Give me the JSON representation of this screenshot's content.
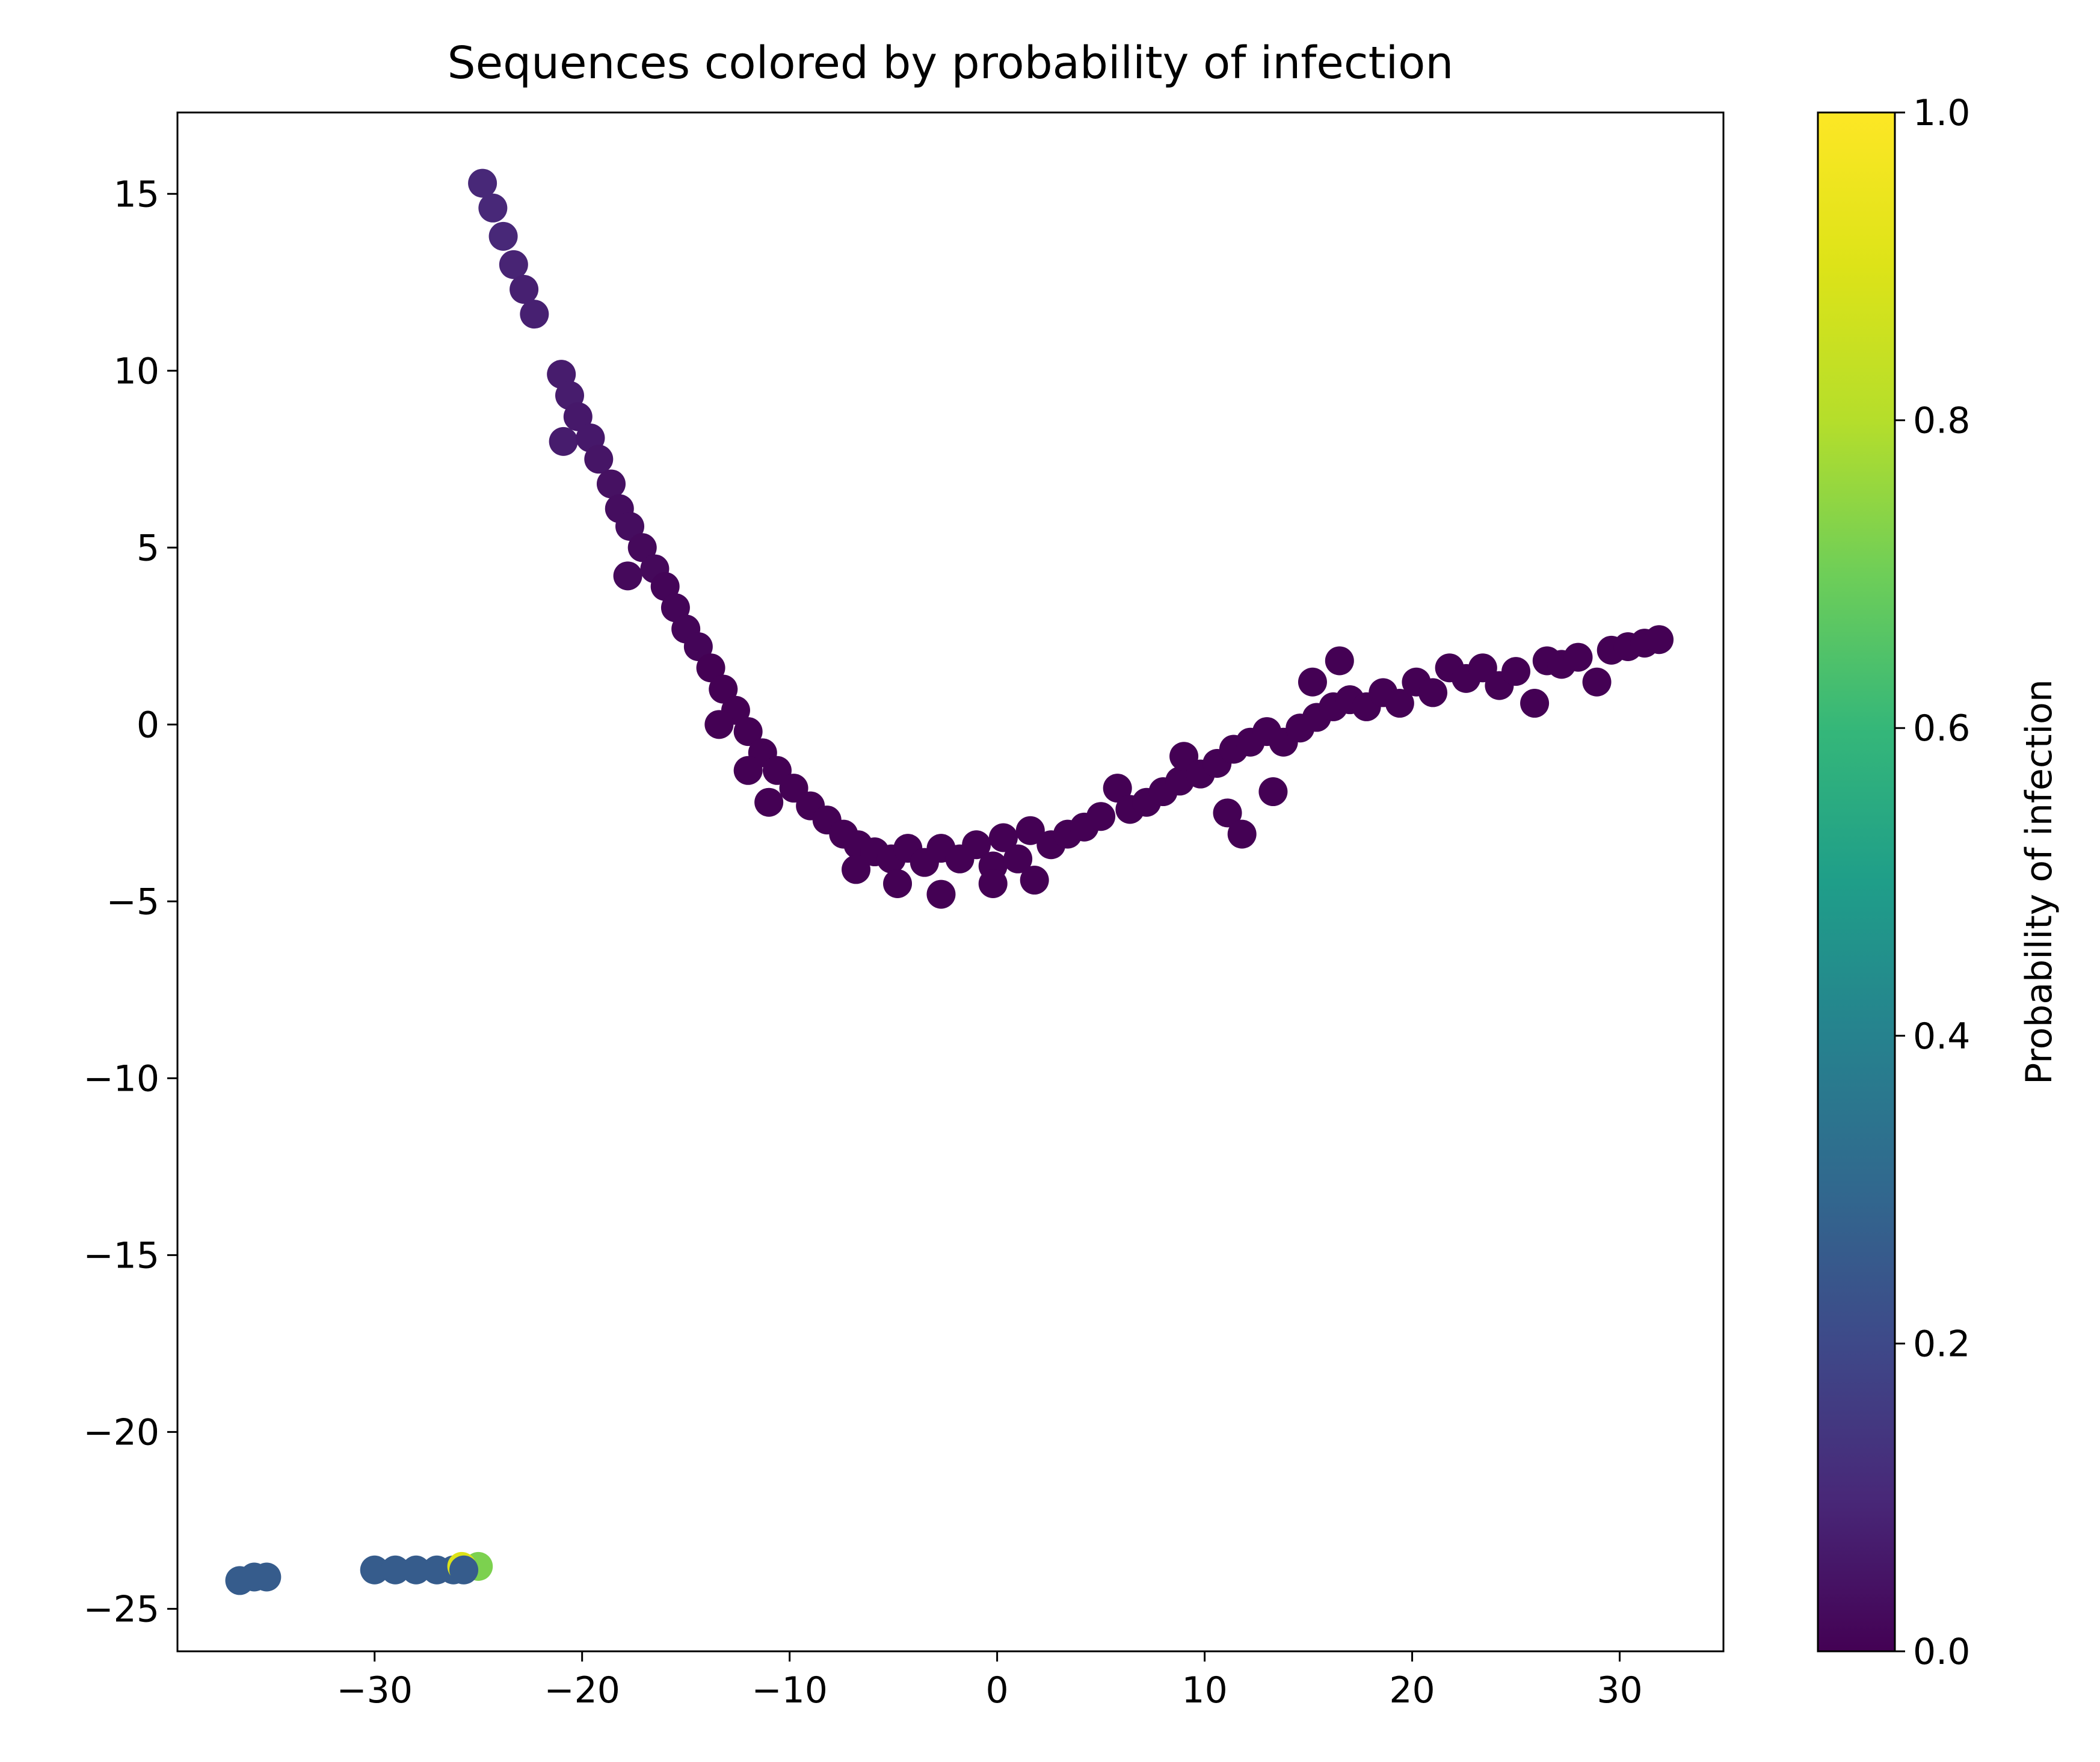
{
  "chart_data": {
    "type": "scatter",
    "title": "Sequences colored by probability of infection",
    "xlabel": "",
    "ylabel": "",
    "xlim": [
      -39.5,
      35.0
    ],
    "ylim": [
      -26.2,
      17.3
    ],
    "xticks": [
      -30,
      -20,
      -10,
      0,
      10,
      20,
      30
    ],
    "yticks": [
      15,
      10,
      5,
      0,
      -5,
      -10,
      -15,
      -20,
      -25
    ],
    "tick_labels_x": [
      "−30",
      "−20",
      "−10",
      "0",
      "10",
      "20",
      "30"
    ],
    "tick_labels_y": [
      "15",
      "10",
      "5",
      "0",
      "−5",
      "−10",
      "−15",
      "−20",
      "−25"
    ],
    "grid": false,
    "colormap": "viridis",
    "colorbar": {
      "label": "Probability of infection",
      "range": [
        0.0,
        1.0
      ],
      "ticks": [
        0.0,
        0.2,
        0.4,
        0.6,
        0.8,
        1.0
      ],
      "tick_labels": [
        "0.0",
        "0.2",
        "0.4",
        "0.6",
        "0.8",
        "1.0"
      ]
    },
    "points": [
      {
        "x": -24.8,
        "y": 15.3,
        "c": 0.1
      },
      {
        "x": -24.3,
        "y": 14.6,
        "c": 0.1
      },
      {
        "x": -23.8,
        "y": 13.8,
        "c": 0.1
      },
      {
        "x": -23.3,
        "y": 13.0,
        "c": 0.09
      },
      {
        "x": -22.8,
        "y": 12.3,
        "c": 0.08
      },
      {
        "x": -22.3,
        "y": 11.6,
        "c": 0.08
      },
      {
        "x": -21.0,
        "y": 9.9,
        "c": 0.07
      },
      {
        "x": -20.6,
        "y": 9.3,
        "c": 0.07
      },
      {
        "x": -20.2,
        "y": 8.7,
        "c": 0.06
      },
      {
        "x": -20.9,
        "y": 8.0,
        "c": 0.07
      },
      {
        "x": -19.6,
        "y": 8.1,
        "c": 0.06
      },
      {
        "x": -19.2,
        "y": 7.5,
        "c": 0.05
      },
      {
        "x": -18.6,
        "y": 6.8,
        "c": 0.04
      },
      {
        "x": -18.2,
        "y": 6.1,
        "c": 0.03
      },
      {
        "x": -17.7,
        "y": 5.6,
        "c": 0.03
      },
      {
        "x": -17.1,
        "y": 5.0,
        "c": 0.02
      },
      {
        "x": -17.8,
        "y": 4.2,
        "c": 0.02
      },
      {
        "x": -16.5,
        "y": 4.4,
        "c": 0.02
      },
      {
        "x": -16.0,
        "y": 3.9,
        "c": 0.01
      },
      {
        "x": -15.5,
        "y": 3.3,
        "c": 0.01
      },
      {
        "x": -15.0,
        "y": 2.7,
        "c": 0.01
      },
      {
        "x": -14.4,
        "y": 2.2,
        "c": 0.01
      },
      {
        "x": -13.8,
        "y": 1.6,
        "c": 0.0
      },
      {
        "x": -13.2,
        "y": 1.0,
        "c": 0.0
      },
      {
        "x": -12.6,
        "y": 0.4,
        "c": 0.0
      },
      {
        "x": -13.4,
        "y": 0.0,
        "c": 0.0
      },
      {
        "x": -12.0,
        "y": -0.2,
        "c": 0.0
      },
      {
        "x": -11.3,
        "y": -0.8,
        "c": 0.0
      },
      {
        "x": -12.0,
        "y": -1.3,
        "c": 0.0
      },
      {
        "x": -10.6,
        "y": -1.3,
        "c": 0.0
      },
      {
        "x": -11.0,
        "y": -2.2,
        "c": 0.0
      },
      {
        "x": -9.8,
        "y": -1.8,
        "c": 0.0
      },
      {
        "x": -9.0,
        "y": -2.3,
        "c": 0.0
      },
      {
        "x": -8.2,
        "y": -2.7,
        "c": 0.0
      },
      {
        "x": -7.4,
        "y": -3.1,
        "c": 0.0
      },
      {
        "x": -6.7,
        "y": -3.4,
        "c": 0.0
      },
      {
        "x": -6.8,
        "y": -4.1,
        "c": 0.0
      },
      {
        "x": -5.9,
        "y": -3.6,
        "c": 0.0
      },
      {
        "x": -5.1,
        "y": -3.8,
        "c": 0.0
      },
      {
        "x": -4.8,
        "y": -4.5,
        "c": 0.0
      },
      {
        "x": -4.3,
        "y": -3.5,
        "c": 0.0
      },
      {
        "x": -3.5,
        "y": -3.9,
        "c": 0.0
      },
      {
        "x": -2.7,
        "y": -4.8,
        "c": 0.0
      },
      {
        "x": -2.7,
        "y": -3.5,
        "c": 0.0
      },
      {
        "x": -1.8,
        "y": -3.8,
        "c": 0.0
      },
      {
        "x": -1.0,
        "y": -3.4,
        "c": 0.0
      },
      {
        "x": -0.2,
        "y": -4.0,
        "c": 0.0
      },
      {
        "x": -0.2,
        "y": -4.5,
        "c": 0.0
      },
      {
        "x": 0.3,
        "y": -3.2,
        "c": 0.0
      },
      {
        "x": 1.0,
        "y": -3.8,
        "c": 0.0
      },
      {
        "x": 1.8,
        "y": -4.4,
        "c": 0.0
      },
      {
        "x": 1.6,
        "y": -3.0,
        "c": 0.0
      },
      {
        "x": 2.6,
        "y": -3.4,
        "c": 0.0
      },
      {
        "x": 3.4,
        "y": -3.1,
        "c": 0.0
      },
      {
        "x": 4.2,
        "y": -2.9,
        "c": 0.0
      },
      {
        "x": 5.0,
        "y": -2.6,
        "c": 0.0
      },
      {
        "x": 5.8,
        "y": -1.8,
        "c": 0.0
      },
      {
        "x": 6.4,
        "y": -2.4,
        "c": 0.0
      },
      {
        "x": 7.2,
        "y": -2.2,
        "c": 0.0
      },
      {
        "x": 8.0,
        "y": -1.9,
        "c": 0.0
      },
      {
        "x": 8.8,
        "y": -1.6,
        "c": 0.0
      },
      {
        "x": 9.0,
        "y": -0.9,
        "c": 0.0
      },
      {
        "x": 9.8,
        "y": -1.4,
        "c": 0.0
      },
      {
        "x": 10.6,
        "y": -1.1,
        "c": 0.0
      },
      {
        "x": 11.1,
        "y": -2.5,
        "c": 0.0
      },
      {
        "x": 11.4,
        "y": -0.7,
        "c": 0.0
      },
      {
        "x": 11.8,
        "y": -3.1,
        "c": 0.0
      },
      {
        "x": 12.2,
        "y": -0.5,
        "c": 0.0
      },
      {
        "x": 13.0,
        "y": -0.2,
        "c": 0.0
      },
      {
        "x": 13.3,
        "y": -1.9,
        "c": 0.0
      },
      {
        "x": 13.8,
        "y": -0.5,
        "c": 0.0
      },
      {
        "x": 14.6,
        "y": -0.1,
        "c": 0.0
      },
      {
        "x": 15.2,
        "y": 1.2,
        "c": 0.0
      },
      {
        "x": 15.4,
        "y": 0.2,
        "c": 0.0
      },
      {
        "x": 16.2,
        "y": 0.5,
        "c": 0.0
      },
      {
        "x": 16.5,
        "y": 1.8,
        "c": 0.0
      },
      {
        "x": 17.0,
        "y": 0.7,
        "c": 0.0
      },
      {
        "x": 17.8,
        "y": 0.5,
        "c": 0.0
      },
      {
        "x": 18.6,
        "y": 0.9,
        "c": 0.0
      },
      {
        "x": 19.4,
        "y": 0.6,
        "c": 0.0
      },
      {
        "x": 20.2,
        "y": 1.2,
        "c": 0.0
      },
      {
        "x": 21.0,
        "y": 0.9,
        "c": 0.0
      },
      {
        "x": 21.8,
        "y": 1.6,
        "c": 0.0
      },
      {
        "x": 22.6,
        "y": 1.3,
        "c": 0.0
      },
      {
        "x": 23.4,
        "y": 1.6,
        "c": 0.0
      },
      {
        "x": 24.2,
        "y": 1.1,
        "c": 0.0
      },
      {
        "x": 25.0,
        "y": 1.5,
        "c": 0.0
      },
      {
        "x": 25.9,
        "y": 0.6,
        "c": 0.0
      },
      {
        "x": 26.5,
        "y": 1.8,
        "c": 0.0
      },
      {
        "x": 27.2,
        "y": 1.7,
        "c": 0.0
      },
      {
        "x": 28.0,
        "y": 1.9,
        "c": 0.0
      },
      {
        "x": 28.9,
        "y": 1.2,
        "c": 0.0
      },
      {
        "x": 29.6,
        "y": 2.1,
        "c": 0.0
      },
      {
        "x": 30.4,
        "y": 2.2,
        "c": 0.0
      },
      {
        "x": 31.2,
        "y": 2.3,
        "c": 0.0
      },
      {
        "x": 31.9,
        "y": 2.4,
        "c": 0.0
      },
      {
        "x": -36.5,
        "y": -24.2,
        "c": 0.26
      },
      {
        "x": -35.8,
        "y": -24.1,
        "c": 0.26
      },
      {
        "x": -35.2,
        "y": -24.1,
        "c": 0.26
      },
      {
        "x": -30.0,
        "y": -23.9,
        "c": 0.26
      },
      {
        "x": -29.0,
        "y": -23.9,
        "c": 0.26
      },
      {
        "x": -28.0,
        "y": -23.9,
        "c": 0.26
      },
      {
        "x": -27.0,
        "y": -23.9,
        "c": 0.26
      },
      {
        "x": -26.2,
        "y": -23.9,
        "c": 0.26
      },
      {
        "x": -25.0,
        "y": -23.8,
        "c": 0.72
      },
      {
        "x": -25.8,
        "y": -23.8,
        "c": 0.9
      },
      {
        "x": -25.7,
        "y": -23.9,
        "c": 0.26
      }
    ]
  }
}
